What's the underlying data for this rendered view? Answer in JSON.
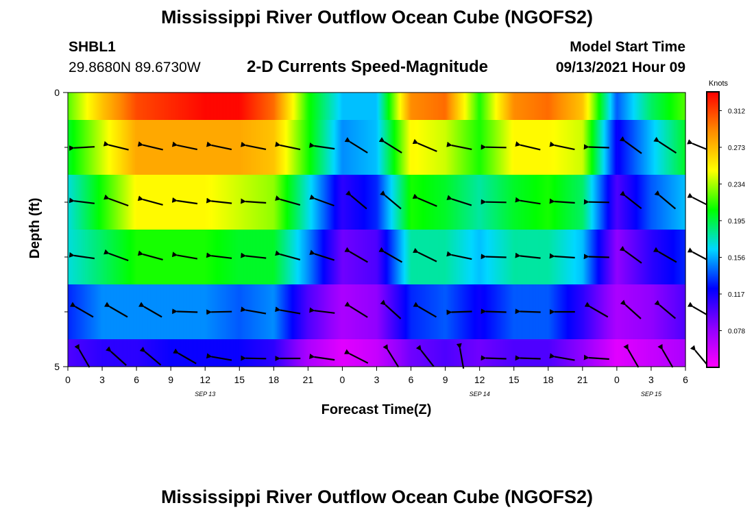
{
  "page": {
    "title_top": "Mississippi River Outflow Ocean Cube (NGOFS2)",
    "title_bottom": "Mississippi River Outflow Ocean Cube (NGOFS2)",
    "station_id": "SHBL1",
    "station_coords": "29.8680N  89.6730W",
    "plot_subtitle": "2-D Currents Speed-Magnitude",
    "model_start_label": "Model Start Time",
    "model_start_value": "09/13/2021 Hour 09"
  },
  "chart_data": {
    "type": "heatmap",
    "title": "2-D Currents Speed-Magnitude",
    "xlabel": "Forecast Time(Z)",
    "ylabel": "Depth (ft)",
    "x_tick_labels": [
      "0",
      "3",
      "6",
      "9",
      "12",
      "15",
      "18",
      "21",
      "0",
      "3",
      "6",
      "9",
      "12",
      "15",
      "18",
      "21",
      "0",
      "3",
      "6"
    ],
    "x_range_hours": [
      0,
      54
    ],
    "y_tick_labels": [
      "0",
      "5"
    ],
    "y_range_ft": [
      0,
      5
    ],
    "day_labels": [
      {
        "label": "SEP 13",
        "hour": 12
      },
      {
        "label": "SEP 14",
        "hour": 36
      },
      {
        "label": "SEP 15",
        "hour": 51
      }
    ],
    "colorbar": {
      "unit": "Knots",
      "tick_labels": [
        "0.312",
        "0.273",
        "0.234",
        "0.195",
        "0.156",
        "0.117",
        "0.078"
      ],
      "min": 0.039,
      "max": 0.332,
      "colors": [
        "#ff00ff",
        "#8f00ff",
        "#0000ff",
        "#00d8ff",
        "#00ff00",
        "#ffff00",
        "#ff8c00",
        "#ff0000"
      ]
    },
    "rows": [
      {
        "depth": 0,
        "speeds": [
          0.22,
          0.27,
          0.31,
          0.32,
          0.33,
          0.33,
          0.3,
          0.21,
          0.16,
          0.16,
          0.29,
          0.3,
          0.21,
          0.29,
          0.3,
          0.27,
          0.14,
          0.19,
          0.22
        ]
      },
      {
        "depth": 1,
        "speeds": [
          0.2,
          0.24,
          0.28,
          0.28,
          0.28,
          0.28,
          0.27,
          0.21,
          0.15,
          0.16,
          0.25,
          0.24,
          0.21,
          0.25,
          0.25,
          0.24,
          0.12,
          0.16,
          0.2
        ]
      },
      {
        "depth": 2,
        "speeds": [
          0.17,
          0.21,
          0.25,
          0.25,
          0.25,
          0.24,
          0.23,
          0.17,
          0.11,
          0.13,
          0.21,
          0.2,
          0.18,
          0.2,
          0.21,
          0.19,
          0.1,
          0.14,
          0.16
        ]
      },
      {
        "depth": 3,
        "speeds": [
          0.17,
          0.19,
          0.21,
          0.21,
          0.21,
          0.2,
          0.2,
          0.15,
          0.09,
          0.1,
          0.18,
          0.18,
          0.16,
          0.18,
          0.18,
          0.16,
          0.08,
          0.11,
          0.13
        ]
      },
      {
        "depth": 4,
        "speeds": [
          0.13,
          0.15,
          0.15,
          0.15,
          0.15,
          0.14,
          0.15,
          0.1,
          0.07,
          0.08,
          0.13,
          0.14,
          0.12,
          0.14,
          0.14,
          0.11,
          0.07,
          0.08,
          0.1
        ]
      },
      {
        "depth": 5,
        "speeds": [
          0.1,
          0.11,
          0.11,
          0.12,
          0.12,
          0.12,
          0.11,
          0.07,
          0.05,
          0.06,
          0.09,
          0.1,
          0.09,
          0.1,
          0.1,
          0.08,
          0.05,
          0.06,
          0.07
        ]
      }
    ],
    "vectors": [
      {
        "depth": 1,
        "dirs_deg": [
          183,
          166,
          167,
          168,
          168,
          169,
          168,
          172,
          148,
          148,
          157,
          169,
          179,
          167,
          168,
          178,
          144,
          147,
          158
        ]
      },
      {
        "depth": 2,
        "dirs_deg": [
          173,
          160,
          165,
          172,
          174,
          176,
          164,
          160,
          140,
          140,
          157,
          162,
          179,
          171,
          176,
          179,
          142,
          140,
          153
        ]
      },
      {
        "depth": 3,
        "dirs_deg": [
          172,
          160,
          165,
          170,
          173,
          174,
          165,
          162,
          150,
          150,
          154,
          168,
          178,
          174,
          176,
          178,
          144,
          150,
          152
        ]
      },
      {
        "depth": 4,
        "dirs_deg": [
          150,
          150,
          150,
          178,
          181,
          170,
          170,
          173,
          148,
          138,
          150,
          182,
          178,
          178,
          180,
          150,
          138,
          140,
          150
        ]
      },
      {
        "depth": 5,
        "dirs_deg": [
          120,
          138,
          140,
          150,
          170,
          179,
          180,
          172,
          153,
          122,
          128,
          100,
          178,
          178,
          170,
          176,
          120,
          120,
          130
        ]
      }
    ]
  }
}
